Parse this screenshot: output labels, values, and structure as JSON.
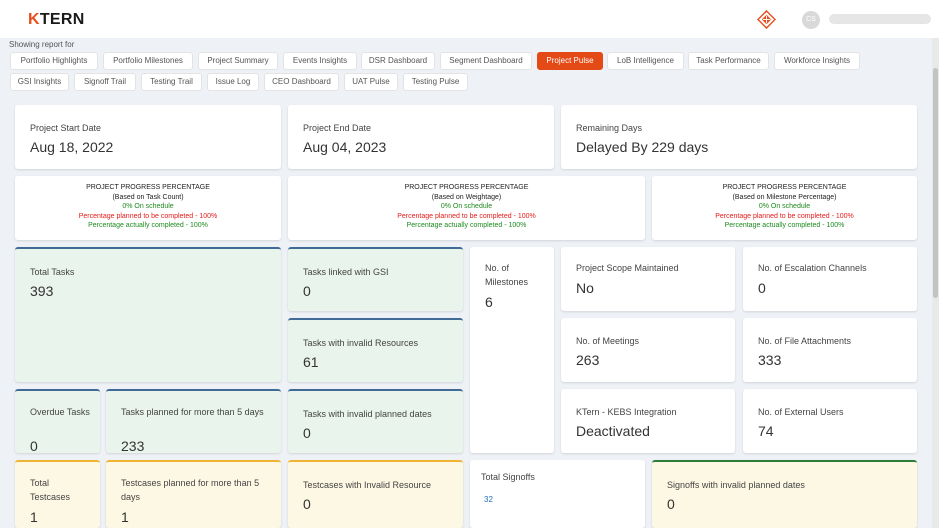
{
  "header": {
    "logo_k": "K",
    "logo_rest": "TERN",
    "avatar_initials": "CS"
  },
  "report_label": "Showing report for",
  "tabs": [
    {
      "label": "Portfolio Highlights",
      "active": false
    },
    {
      "label": "Portfolio Milestones",
      "active": false
    },
    {
      "label": "Project Summary",
      "active": false
    },
    {
      "label": "Events Insights",
      "active": false
    },
    {
      "label": "DSR Dashboard",
      "active": false
    },
    {
      "label": "Segment Dashboard",
      "active": false
    },
    {
      "label": "Project Pulse",
      "active": true
    },
    {
      "label": "LoB Intelligence",
      "active": false
    },
    {
      "label": "Task Performance",
      "active": false
    },
    {
      "label": "Workforce Insights",
      "active": false
    },
    {
      "label": "GSI Insights",
      "active": false
    },
    {
      "label": "Signoff Trail",
      "active": false
    },
    {
      "label": "Testing Trail",
      "active": false
    },
    {
      "label": "Issue Log",
      "active": false
    },
    {
      "label": "CEO Dashboard",
      "active": false
    },
    {
      "label": "UAT Pulse",
      "active": false
    },
    {
      "label": "Testing Pulse",
      "active": false
    }
  ],
  "dates": {
    "start_label": "Project Start Date",
    "start_value": "Aug 18, 2022",
    "end_label": "Project End Date",
    "end_value": "Aug 04, 2023",
    "remaining_label": "Remaining Days",
    "remaining_value": "Delayed By 229 days"
  },
  "progress": [
    {
      "title": "PROJECT PROGRESS PERCENTAGE",
      "basis": "(Based on Task Count)",
      "schedule": "0% On schedule",
      "planned": "Percentage planned to be completed - 100%",
      "actual": "Percentage actually completed - 100%"
    },
    {
      "title": "PROJECT PROGRESS PERCENTAGE",
      "basis": "(Based on Weightage)",
      "schedule": "0% On schedule",
      "planned": "Percentage planned to be completed - 100%",
      "actual": "Percentage actually completed - 100%"
    },
    {
      "title": "PROJECT PROGRESS PERCENTAGE",
      "basis": "(Based on Milestone Percentage)",
      "schedule": "0% On schedule",
      "planned": "Percentage planned to be completed - 100%",
      "actual": "Percentage actually completed - 100%"
    }
  ],
  "metrics": {
    "total_tasks": {
      "label": "Total Tasks",
      "value": "393"
    },
    "tasks_gsi": {
      "label": "Tasks linked with GSI",
      "value": "0"
    },
    "tasks_invalid_resources": {
      "label": "Tasks with invalid Resources",
      "value": "61"
    },
    "tasks_invalid_dates": {
      "label": "Tasks with invalid planned dates",
      "value": "0"
    },
    "overdue_tasks": {
      "label": "Overdue Tasks",
      "value": "0"
    },
    "tasks_planned_5": {
      "label": "Tasks planned for more than 5 days",
      "value": "233"
    },
    "milestones": {
      "label": "No. of Milestones",
      "value": "6"
    },
    "scope": {
      "label": "Project Scope Maintained",
      "value": "No"
    },
    "escalation": {
      "label": "No. of Escalation Channels",
      "value": "0"
    },
    "meetings": {
      "label": "No. of Meetings",
      "value": "263"
    },
    "attachments": {
      "label": "No. of File Attachments",
      "value": "333"
    },
    "integration": {
      "label": "KTern - KEBS Integration",
      "value": "Deactivated"
    },
    "external_users": {
      "label": "No. of External Users",
      "value": "74"
    },
    "total_testcases": {
      "label": "Total Testcases",
      "value": "1"
    },
    "testcases_planned_5": {
      "label": "Testcases planned for more than 5 days",
      "value": "1"
    },
    "testcases_invalid_resource": {
      "label": "Testcases with Invalid Resource",
      "value": "0"
    },
    "total_signoffs": {
      "label": "Total Signoffs",
      "value": "32"
    },
    "signoffs_invalid_dates": {
      "label": "Signoffs with invalid planned dates",
      "value": "0"
    }
  },
  "colors": {
    "accent": "#e44a15",
    "green_card": "#e8f4ec",
    "yellow_card": "#fdf8e3",
    "on_schedule": "#1e8a1e",
    "planned": "#e51b1b"
  }
}
